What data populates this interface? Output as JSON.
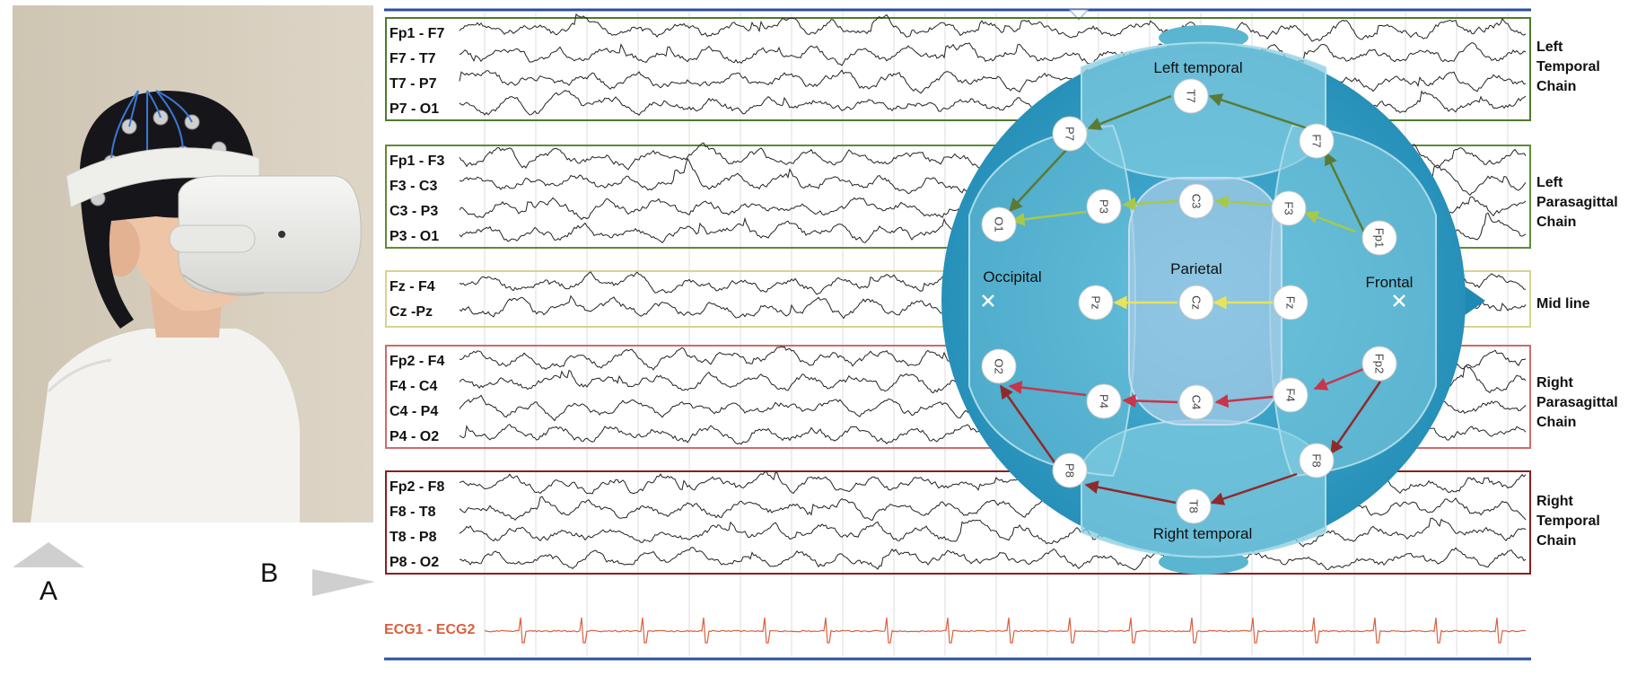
{
  "panels": {
    "a_label": "A",
    "b_label": "B"
  },
  "channel_groups": [
    {
      "name": "Left Temporal Chain",
      "chain_lines": [
        "Left",
        "Temporal",
        "Chain"
      ],
      "color": "#4e7a2e",
      "channels": [
        "Fp1 - F7",
        "F7 - T7",
        "T7 - P7",
        "P7 - O1"
      ]
    },
    {
      "name": "Left Parasagittal Chain",
      "chain_lines": [
        "Left",
        "Parasagittal",
        "Chain"
      ],
      "color": "#5e8c34",
      "channels": [
        "Fp1 - F3",
        "F3 - C3",
        "C3 - P3",
        "P3 - O1"
      ]
    },
    {
      "name": "Mid line",
      "chain_lines": [
        "Mid line"
      ],
      "color": "#d6d48e",
      "channels": [
        "Fz - F4",
        "Cz -Pz"
      ]
    },
    {
      "name": "Right Parasagittal Chain",
      "chain_lines": [
        "Right",
        "Parasagittal",
        "Chain"
      ],
      "color": "#d06b6b",
      "channels": [
        "Fp2 - F4",
        "F4 - C4",
        "C4 - P4",
        "P4 - O2"
      ]
    },
    {
      "name": "Right Temporal Chain",
      "chain_lines": [
        "Right",
        "Temporal",
        "Chain"
      ],
      "color": "#8a1f1f",
      "channels": [
        "Fp2 - F8",
        "F8 - T8",
        "T8 - P8",
        "P8 - O2"
      ]
    }
  ],
  "ecg": {
    "label": "ECG1 - ECG2",
    "color": "#d9603f"
  },
  "head_map": {
    "regions": {
      "left_temporal": "Left temporal",
      "right_temporal": "Right temporal",
      "parietal": "Parietal",
      "occipital": "Occipital",
      "frontal": "Frontal"
    },
    "electrodes": [
      "T7",
      "P7",
      "F7",
      "O1",
      "P3",
      "C3",
      "F3",
      "Fp1",
      "Pz",
      "Cz",
      "Fz",
      "O2",
      "P4",
      "C4",
      "F4",
      "Fp2",
      "P8",
      "F8",
      "T8"
    ],
    "colors": {
      "head": "#2f9fc4",
      "inner": "#7fcbe0",
      "left_chain": "#5b7a35",
      "parasagittal": "#a7c94a",
      "midline": "#e8e35a",
      "right_parasagittal": "#c8354a",
      "right_temporal": "#8f2a2a"
    }
  }
}
